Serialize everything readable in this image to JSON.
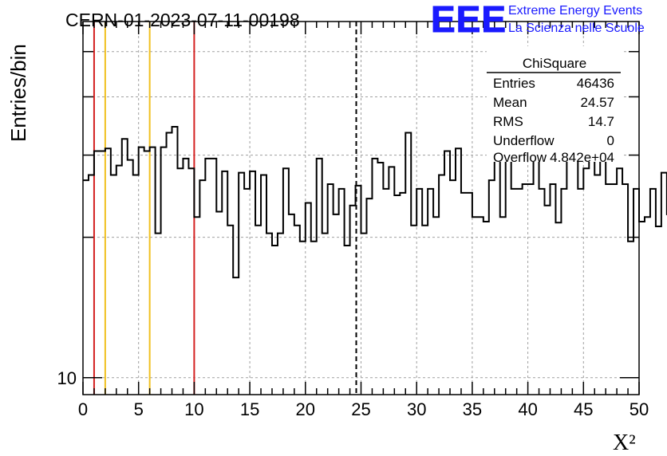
{
  "header": {
    "run_title": "CERN-01-2023-07-11-00198",
    "logo_text": "EEE",
    "logo_line1": "Extreme Energy Events",
    "logo_line2": "La Scienza nelle Scuole"
  },
  "stats": {
    "title": "ChiSquare",
    "rows": [
      {
        "label": "Entries",
        "value": "46436"
      },
      {
        "label": "Mean",
        "value": "24.57"
      },
      {
        "label": "RMS",
        "value": "14.7"
      },
      {
        "label": "Underflow",
        "value": "0"
      },
      {
        "label": "Overflow",
        "value": "4.842e+04"
      }
    ]
  },
  "chart_data": {
    "type": "histogram",
    "xlabel": "X²",
    "ylabel": "Entries/bin",
    "xlim": [
      0,
      50
    ],
    "ylim": [
      9.2,
      58
    ],
    "yscale": "log",
    "grid": true,
    "legend": "top-right",
    "x_ticks": [
      "0",
      "5",
      "10",
      "15",
      "20",
      "25",
      "30",
      "35",
      "40",
      "45",
      "50"
    ],
    "y_ticks": [
      "10"
    ],
    "bin_width": 0.5,
    "values": [
      26.5,
      27.2,
      30.6,
      30.6,
      31.0,
      27.2,
      28.5,
      32.5,
      29.3,
      27.2,
      31.2,
      30.6,
      31.2,
      20.4,
      31.2,
      33.5,
      34.5,
      28.1,
      29.5,
      28.1,
      22.1,
      26.5,
      29.5,
      29.5,
      22.7,
      27.7,
      21.2,
      16.4,
      27.5,
      25.4,
      27.7,
      21.2,
      27.2,
      20.4,
      19.2,
      20.4,
      28.1,
      22.4,
      21.2,
      19.6,
      23.7,
      19.6,
      29.5,
      20.4,
      26.0,
      22.4,
      25.4,
      19.2,
      23.4,
      25.8,
      20.4,
      24.2,
      29.5,
      28.9,
      25.4,
      28.3,
      24.6,
      24.9,
      33.5,
      21.2,
      25.4,
      21.2,
      25.4,
      22.1,
      27.2,
      30.6,
      26.5,
      31.0,
      24.9,
      24.9,
      22.1,
      22.1,
      21.6,
      26.5,
      37.7,
      22.1,
      32.5,
      25.4,
      25.4,
      26.0,
      26.0,
      33.5,
      25.4,
      23.4,
      26.0,
      21.5,
      25.4,
      31.0,
      35.0,
      25.4,
      28.1,
      31.0,
      27.2,
      30.0,
      26.0,
      26.0,
      28.1,
      26.0,
      19.6,
      25.4,
      21.6,
      22.1,
      25.4,
      21.1,
      27.5,
      22.4
    ],
    "markers": [
      {
        "x": 1,
        "color": "#d42020",
        "style": "solid"
      },
      {
        "x": 2,
        "color": "#f0c020",
        "style": "solid"
      },
      {
        "x": 6,
        "color": "#f0c020",
        "style": "solid"
      },
      {
        "x": 10,
        "color": "#d42020",
        "style": "solid"
      },
      {
        "x": 24.57,
        "color": "#000000",
        "style": "dashed"
      }
    ]
  },
  "colors": {
    "logo": "#1a1aff",
    "grid": "#a0a0a0"
  }
}
